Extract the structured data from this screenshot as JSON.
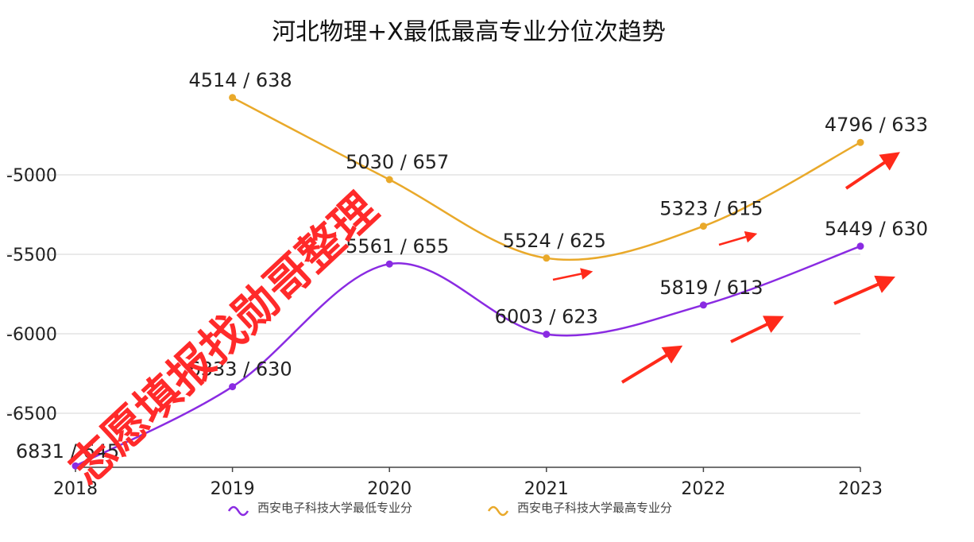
{
  "chart_data": {
    "type": "line",
    "title": "河北物理+X最低最高专业分位次趋势",
    "categories": [
      "2018",
      "2019",
      "2020",
      "2021",
      "2022",
      "2023"
    ],
    "ylim": [
      -6850,
      -4450
    ],
    "yticks": [
      -5000,
      -5500,
      -6000,
      -6500
    ],
    "ytick_labels": [
      "-5000",
      "-5500",
      "-6000",
      "-6500"
    ],
    "grid": true,
    "legend_position": "bottom-center",
    "series": [
      {
        "name": "西安电子科技大学最低专业分",
        "color": "#8a2be2",
        "values": [
          -6831,
          -6333,
          -5561,
          -6003,
          -5819,
          -5449
        ],
        "labels": [
          "6831 / 645",
          "6333 / 630",
          "5561 / 655",
          "6003 / 623",
          "5819 / 613",
          "5449 / 630"
        ]
      },
      {
        "name": "西安电子科技大学最高专业分",
        "color": "#e9a92a",
        "values": [
          null,
          -4514,
          -5030,
          -5524,
          -5323,
          -4796
        ],
        "labels": [
          "",
          "4514 / 638",
          "5030 / 657",
          "5524 / 625",
          "5323 / 615",
          "4796 / 633"
        ]
      }
    ]
  },
  "watermark": {
    "text": "志愿填报找勋哥整理",
    "color": "#ff2a2a"
  },
  "arrow_color": "#ff2a1a"
}
